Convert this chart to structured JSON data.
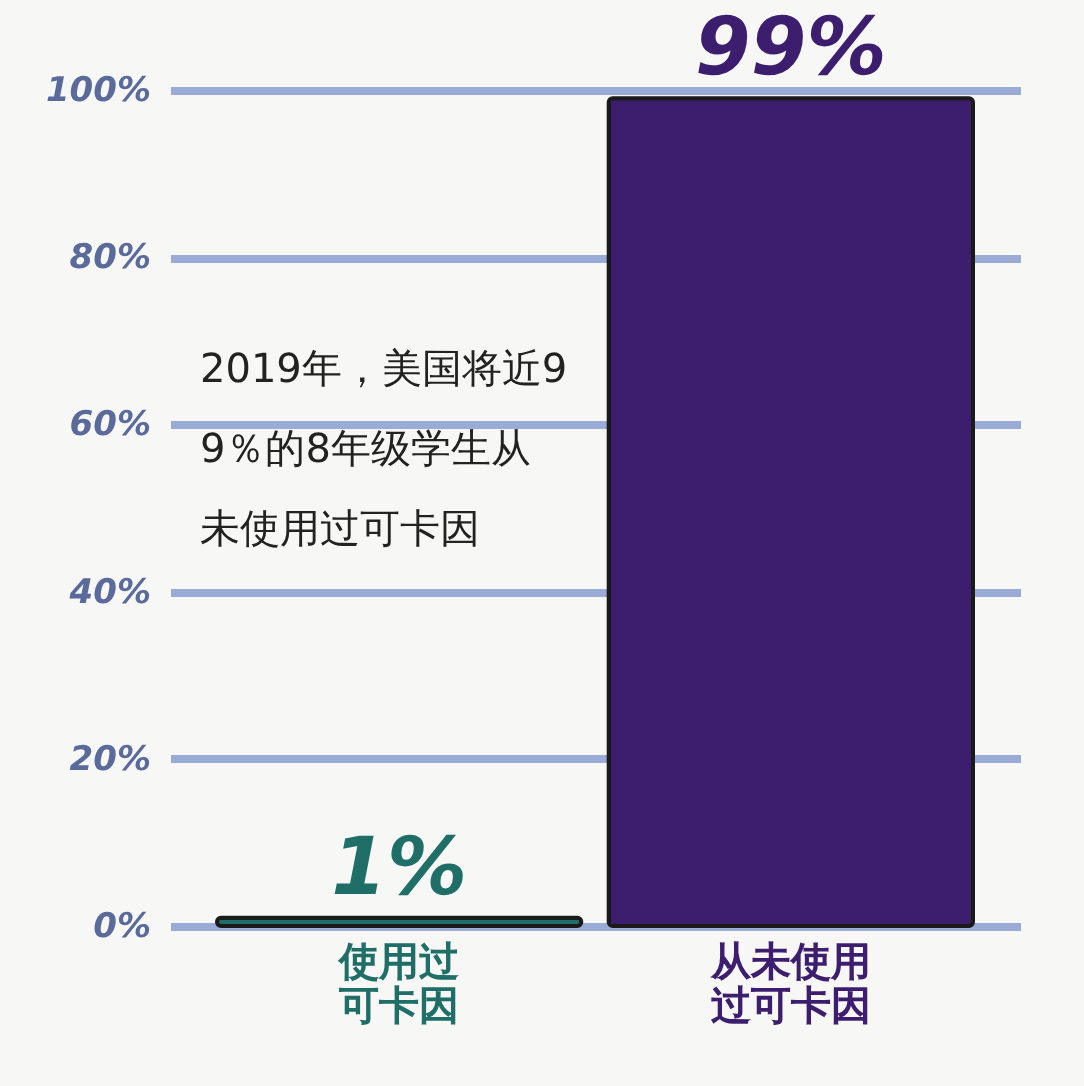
{
  "chart_data": {
    "type": "bar",
    "categories": [
      "使用过可卡因",
      "从未使用过可卡因"
    ],
    "values": [
      1,
      99
    ],
    "colors": [
      "#1f6f68",
      "#3c1d6e"
    ],
    "value_labels": [
      "1%",
      "99%"
    ],
    "ylim": [
      0,
      100
    ],
    "yticks": [
      {
        "value": 0,
        "label": "0%"
      },
      {
        "value": 20,
        "label": "20%"
      },
      {
        "value": 40,
        "label": "40%"
      },
      {
        "value": 60,
        "label": "60%"
      },
      {
        "value": 80,
        "label": "80%"
      },
      {
        "value": 100,
        "label": "100%"
      }
    ],
    "grid": "y",
    "annotations": [
      "2019年，美国将近99％的8年级学生从未使用过可卡因"
    ]
  }
}
